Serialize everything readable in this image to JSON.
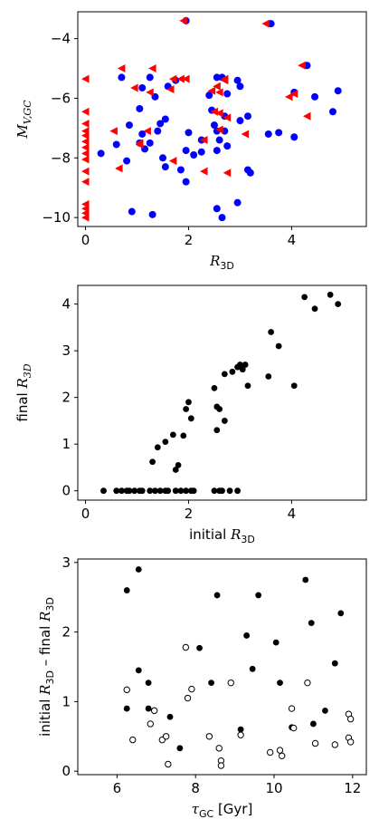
{
  "chart_data": [
    {
      "type": "scatter",
      "xlabel_math": "R",
      "xlabel_sub": "3D",
      "ylabel_math": "M",
      "ylabel_sub": "V,GC",
      "xlim": [
        -0.15,
        5.45
      ],
      "ylim": [
        -10.3,
        -3.1
      ],
      "xticks": [
        0,
        2,
        4
      ],
      "yticks": [
        -10,
        -8,
        -6,
        -4
      ],
      "series": [
        {
          "marker": "circle",
          "color": "#0000ff",
          "points": [
            [
              1.95,
              -3.4
            ],
            [
              3.6,
              -3.5
            ],
            [
              4.3,
              -4.9
            ],
            [
              0.7,
              -5.3
            ],
            [
              1.25,
              -5.3
            ],
            [
              2.55,
              -5.3
            ],
            [
              2.65,
              -5.3
            ],
            [
              2.95,
              -5.4
            ],
            [
              1.1,
              -5.65
            ],
            [
              1.6,
              -5.6
            ],
            [
              1.75,
              -5.4
            ],
            [
              3.0,
              -5.6
            ],
            [
              1.35,
              -5.95
            ],
            [
              4.9,
              -5.75
            ],
            [
              4.05,
              -5.8
            ],
            [
              4.45,
              -5.95
            ],
            [
              2.4,
              -5.9
            ],
            [
              2.75,
              -5.85
            ],
            [
              1.05,
              -6.35
            ],
            [
              2.45,
              -6.4
            ],
            [
              2.7,
              -6.6
            ],
            [
              3.15,
              -6.6
            ],
            [
              4.8,
              -6.45
            ],
            [
              1.55,
              -6.7
            ],
            [
              1.45,
              -6.85
            ],
            [
              0.85,
              -6.9
            ],
            [
              1.1,
              -7.2
            ],
            [
              1.4,
              -7.1
            ],
            [
              2.0,
              -7.15
            ],
            [
              2.5,
              -6.9
            ],
            [
              3.0,
              -6.75
            ],
            [
              3.55,
              -7.2
            ],
            [
              3.75,
              -7.15
            ],
            [
              2.25,
              -7.4
            ],
            [
              2.55,
              -7.1
            ],
            [
              2.7,
              -7.1
            ],
            [
              2.6,
              -7.4
            ],
            [
              0.3,
              -7.85
            ],
            [
              0.6,
              -7.55
            ],
            [
              0.8,
              -8.1
            ],
            [
              1.05,
              -7.5
            ],
            [
              1.25,
              -7.5
            ],
            [
              1.5,
              -8.0
            ],
            [
              1.95,
              -7.75
            ],
            [
              2.1,
              -7.9
            ],
            [
              2.25,
              -7.8
            ],
            [
              2.55,
              -7.75
            ],
            [
              2.75,
              -7.6
            ],
            [
              4.05,
              -7.3
            ],
            [
              1.15,
              -7.7
            ],
            [
              1.85,
              -8.4
            ],
            [
              1.95,
              -8.8
            ],
            [
              3.15,
              -8.4
            ],
            [
              3.2,
              -8.5
            ],
            [
              1.55,
              -8.3
            ],
            [
              0.9,
              -9.8
            ],
            [
              1.3,
              -9.9
            ],
            [
              2.95,
              -9.5
            ],
            [
              2.55,
              -9.7
            ],
            [
              2.65,
              -10.0
            ]
          ]
        },
        {
          "marker": "triangle-left",
          "color": "#ff0000",
          "points": [
            [
              1.9,
              -3.4
            ],
            [
              3.5,
              -3.5
            ],
            [
              4.2,
              -4.9
            ],
            [
              0.0,
              -5.35
            ],
            [
              0.7,
              -5.0
            ],
            [
              1.3,
              -5.0
            ],
            [
              1.7,
              -5.35
            ],
            [
              1.25,
              -5.8
            ],
            [
              1.85,
              -5.35
            ],
            [
              1.95,
              -5.35
            ],
            [
              2.55,
              -5.6
            ],
            [
              2.7,
              -5.4
            ],
            [
              2.45,
              -5.75
            ],
            [
              0.95,
              -5.65
            ],
            [
              1.65,
              -5.7
            ],
            [
              2.6,
              -5.8
            ],
            [
              2.7,
              -5.35
            ],
            [
              4.05,
              -5.85
            ],
            [
              3.95,
              -5.95
            ],
            [
              4.3,
              -6.6
            ],
            [
              0.0,
              -6.45
            ],
            [
              0.0,
              -6.85
            ],
            [
              0.0,
              -7.1
            ],
            [
              0.0,
              -7.25
            ],
            [
              0.0,
              -7.45
            ],
            [
              0.0,
              -7.65
            ],
            [
              0.0,
              -7.85
            ],
            [
              0.0,
              -8.05
            ],
            [
              0.0,
              -8.45
            ],
            [
              0.0,
              -8.8
            ],
            [
              0.0,
              -9.55
            ],
            [
              0.0,
              -9.7
            ],
            [
              0.0,
              -9.85
            ],
            [
              0.0,
              -10.0
            ],
            [
              2.6,
              -6.5
            ],
            [
              2.75,
              -6.65
            ],
            [
              2.6,
              -7.05
            ],
            [
              3.1,
              -7.2
            ],
            [
              2.5,
              -6.45
            ],
            [
              0.55,
              -7.1
            ],
            [
              1.2,
              -7.1
            ],
            [
              1.05,
              -7.5
            ],
            [
              2.3,
              -7.4
            ],
            [
              1.05,
              -7.55
            ],
            [
              0.65,
              -8.35
            ],
            [
              1.7,
              -8.1
            ],
            [
              2.3,
              -8.45
            ],
            [
              2.75,
              -8.5
            ],
            [
              1.05,
              -7.55
            ]
          ]
        }
      ]
    },
    {
      "type": "scatter",
      "xlabel_text": "initial ",
      "xlabel_math": "R",
      "xlabel_sub": "3D",
      "ylabel_text": "final ",
      "ylabel_math": "R",
      "ylabel_sub": "3D",
      "xlim": [
        -0.15,
        5.45
      ],
      "ylim": [
        -0.2,
        4.4
      ],
      "xticks": [
        0,
        2,
        4
      ],
      "yticks": [
        0,
        1,
        2,
        3,
        4
      ],
      "series": [
        {
          "marker": "circle",
          "color": "#000000",
          "points": [
            [
              0.35,
              0
            ],
            [
              0.6,
              0
            ],
            [
              0.7,
              0
            ],
            [
              0.8,
              0
            ],
            [
              0.85,
              0
            ],
            [
              0.95,
              0
            ],
            [
              1.05,
              0
            ],
            [
              1.1,
              0
            ],
            [
              1.25,
              0
            ],
            [
              1.35,
              0
            ],
            [
              1.45,
              0
            ],
            [
              1.55,
              0
            ],
            [
              1.6,
              0
            ],
            [
              1.75,
              0
            ],
            [
              1.85,
              0
            ],
            [
              1.95,
              0
            ],
            [
              2.05,
              0
            ],
            [
              2.1,
              0
            ],
            [
              2.5,
              0
            ],
            [
              2.6,
              0
            ],
            [
              2.65,
              0
            ],
            [
              2.8,
              0
            ],
            [
              2.95,
              0
            ],
            [
              1.3,
              0.62
            ],
            [
              1.4,
              0.93
            ],
            [
              1.55,
              1.05
            ],
            [
              1.7,
              1.2
            ],
            [
              1.75,
              0.45
            ],
            [
              1.8,
              0.55
            ],
            [
              1.9,
              1.18
            ],
            [
              1.95,
              1.75
            ],
            [
              2.0,
              1.9
            ],
            [
              2.05,
              1.55
            ],
            [
              2.5,
              2.2
            ],
            [
              2.55,
              1.8
            ],
            [
              2.6,
              1.75
            ],
            [
              2.55,
              1.3
            ],
            [
              2.7,
              2.5
            ],
            [
              2.7,
              1.5
            ],
            [
              2.85,
              2.55
            ],
            [
              2.95,
              2.65
            ],
            [
              3.0,
              2.7
            ],
            [
              3.05,
              2.6
            ],
            [
              3.1,
              2.7
            ],
            [
              3.15,
              2.25
            ],
            [
              3.55,
              2.45
            ],
            [
              3.6,
              3.4
            ],
            [
              3.75,
              3.1
            ],
            [
              4.05,
              2.25
            ],
            [
              4.25,
              4.15
            ],
            [
              4.45,
              3.9
            ],
            [
              4.75,
              4.2
            ],
            [
              4.9,
              4.0
            ]
          ]
        }
      ]
    },
    {
      "type": "scatter",
      "xlabel_math": "τ",
      "xlabel_sub": "GC",
      "xlabel_suffix": " [Gyr]",
      "ylabel_text1": "initial ",
      "ylabel_text2": " – final ",
      "ylabel_math": "R",
      "ylabel_sub": "3D",
      "xlim": [
        5.0,
        12.35
      ],
      "ylim": [
        -0.05,
        3.05
      ],
      "xticks": [
        6,
        8,
        10,
        12
      ],
      "yticks": [
        0,
        1,
        2,
        3
      ],
      "series": [
        {
          "marker": "circle",
          "fill": "filled",
          "color": "#000000",
          "points": [
            [
              6.25,
              2.6
            ],
            [
              6.55,
              2.9
            ],
            [
              6.55,
              1.45
            ],
            [
              6.25,
              0.9
            ],
            [
              6.8,
              1.27
            ],
            [
              6.8,
              0.9
            ],
            [
              7.35,
              0.78
            ],
            [
              7.6,
              0.33
            ],
            [
              8.1,
              1.77
            ],
            [
              8.4,
              1.27
            ],
            [
              8.55,
              2.53
            ],
            [
              9.15,
              0.6
            ],
            [
              9.3,
              1.95
            ],
            [
              9.45,
              1.47
            ],
            [
              9.6,
              2.53
            ],
            [
              10.05,
              1.85
            ],
            [
              10.15,
              1.27
            ],
            [
              10.45,
              0.63
            ],
            [
              10.8,
              2.75
            ],
            [
              10.95,
              2.13
            ],
            [
              11.3,
              0.87
            ],
            [
              11.55,
              1.55
            ],
            [
              11.7,
              2.27
            ],
            [
              11.0,
              0.68
            ]
          ]
        },
        {
          "marker": "circle",
          "fill": "open",
          "color": "#000000",
          "points": [
            [
              6.25,
              1.17
            ],
            [
              6.4,
              0.45
            ],
            [
              6.85,
              0.68
            ],
            [
              6.95,
              0.87
            ],
            [
              7.15,
              0.45
            ],
            [
              7.25,
              0.5
            ],
            [
              7.3,
              0.1
            ],
            [
              7.75,
              1.78
            ],
            [
              7.8,
              1.05
            ],
            [
              7.9,
              1.18
            ],
            [
              8.35,
              0.5
            ],
            [
              8.6,
              0.33
            ],
            [
              8.65,
              0.15
            ],
            [
              8.65,
              0.08
            ],
            [
              8.9,
              1.27
            ],
            [
              9.15,
              0.52
            ],
            [
              9.9,
              0.27
            ],
            [
              10.15,
              0.3
            ],
            [
              10.2,
              0.22
            ],
            [
              10.45,
              0.9
            ],
            [
              10.5,
              0.62
            ],
            [
              10.85,
              1.27
            ],
            [
              11.05,
              0.4
            ],
            [
              11.55,
              0.38
            ],
            [
              11.9,
              0.82
            ],
            [
              11.9,
              0.48
            ],
            [
              11.95,
              0.42
            ],
            [
              11.95,
              0.75
            ]
          ]
        }
      ]
    }
  ]
}
